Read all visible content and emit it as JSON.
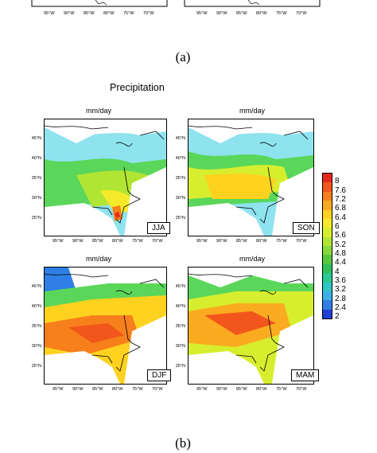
{
  "figure": {
    "caption_a": "(a)",
    "caption_b": "(b)",
    "title": "Precipitation",
    "units": "mm/day",
    "panels": [
      {
        "season": "JJA"
      },
      {
        "season": "SON"
      },
      {
        "season": "DJF"
      },
      {
        "season": "MAM"
      }
    ],
    "lon_ticks": [
      "95°W",
      "90°W",
      "85°W",
      "80°W",
      "75°W",
      "70°W"
    ],
    "lat_ticks": [
      "45°N",
      "40°N",
      "35°N",
      "30°N",
      "25°N"
    ],
    "colorbar": {
      "labels": [
        "8",
        "7.6",
        "7.2",
        "6.8",
        "6.4",
        "6",
        "5.6",
        "5.2",
        "4.8",
        "4.4",
        "4",
        "3.6",
        "3.2",
        "2.8",
        "2.4",
        "2"
      ],
      "colors": [
        "#e8281e",
        "#f2561c",
        "#f7801c",
        "#fbab1f",
        "#ffd21f",
        "#f4ea2b",
        "#d7ee2e",
        "#b1e533",
        "#86d93a",
        "#58c73e",
        "#2fc05a",
        "#29c98f",
        "#2ec7c4",
        "#3bb0e8",
        "#2f7fe6",
        "#1f3fd6"
      ]
    },
    "top_strip_lon_ticks": [
      "95°W",
      "90°W",
      "85°W",
      "80°W",
      "75°W",
      "70°W"
    ]
  }
}
